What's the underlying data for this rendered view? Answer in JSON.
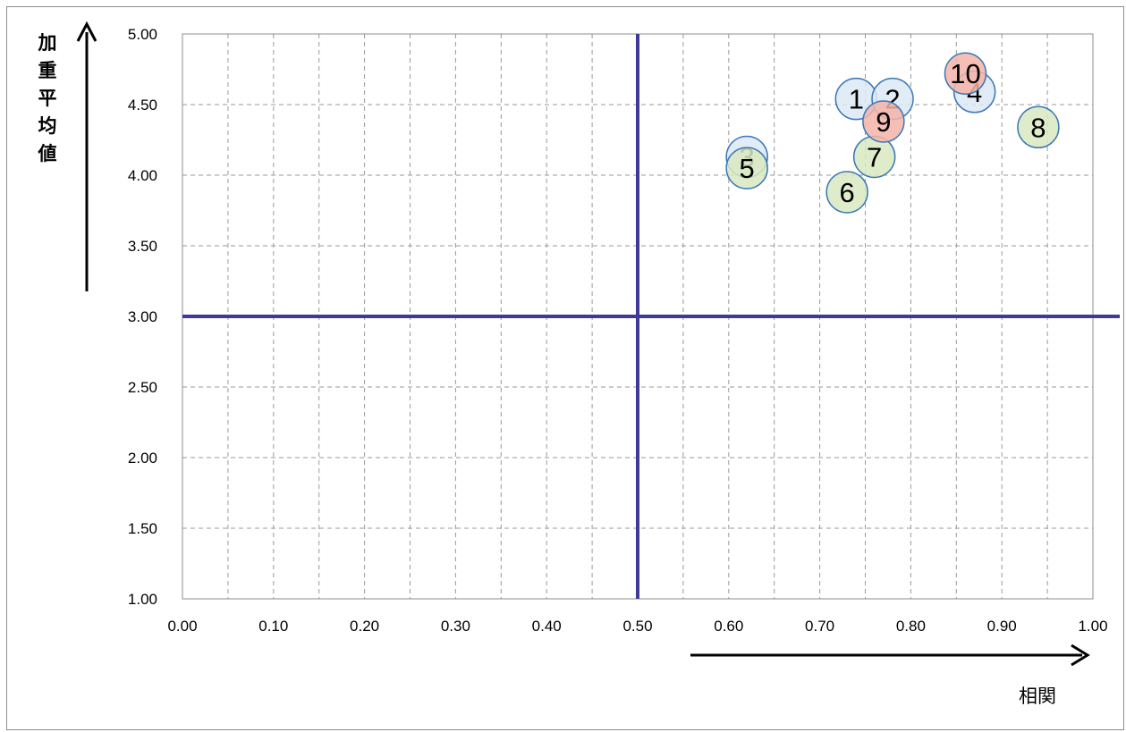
{
  "chart_data": {
    "type": "scatter",
    "xlim": [
      0.0,
      1.0
    ],
    "ylim": [
      1.0,
      5.0
    ],
    "x_ticks": [
      "0.00",
      "0.10",
      "0.20",
      "0.30",
      "0.40",
      "0.50",
      "0.60",
      "0.70",
      "0.80",
      "0.90",
      "1.00"
    ],
    "y_ticks": [
      "1.00",
      "1.50",
      "2.00",
      "2.50",
      "3.00",
      "3.50",
      "4.00",
      "4.50",
      "5.00"
    ],
    "x_minor_step": 0.05,
    "grid": true,
    "reference_lines": {
      "x": 0.5,
      "y": 3.0,
      "color": "#3f3a96"
    },
    "xlabel": "相関",
    "ylabel": "加重平均値",
    "points": [
      {
        "label": "1",
        "x": 0.74,
        "y": 4.54,
        "group": "blue"
      },
      {
        "label": "2",
        "x": 0.78,
        "y": 4.54,
        "group": "blue"
      },
      {
        "label": "3",
        "x": 0.62,
        "y": 4.13,
        "group": "blue"
      },
      {
        "label": "4",
        "x": 0.87,
        "y": 4.59,
        "group": "blue"
      },
      {
        "label": "5",
        "x": 0.62,
        "y": 4.05,
        "group": "green"
      },
      {
        "label": "6",
        "x": 0.73,
        "y": 3.88,
        "group": "green"
      },
      {
        "label": "7",
        "x": 0.76,
        "y": 4.13,
        "group": "green"
      },
      {
        "label": "8",
        "x": 0.94,
        "y": 4.34,
        "group": "green"
      },
      {
        "label": "9",
        "x": 0.77,
        "y": 4.38,
        "group": "red"
      },
      {
        "label": "10",
        "x": 0.86,
        "y": 4.72,
        "group": "red"
      }
    ],
    "group_colors": {
      "blue": "#dde9f5",
      "green": "#d9e9c1",
      "red": "#f4b4a8"
    },
    "marker_edge_color": "#3a78b8"
  }
}
